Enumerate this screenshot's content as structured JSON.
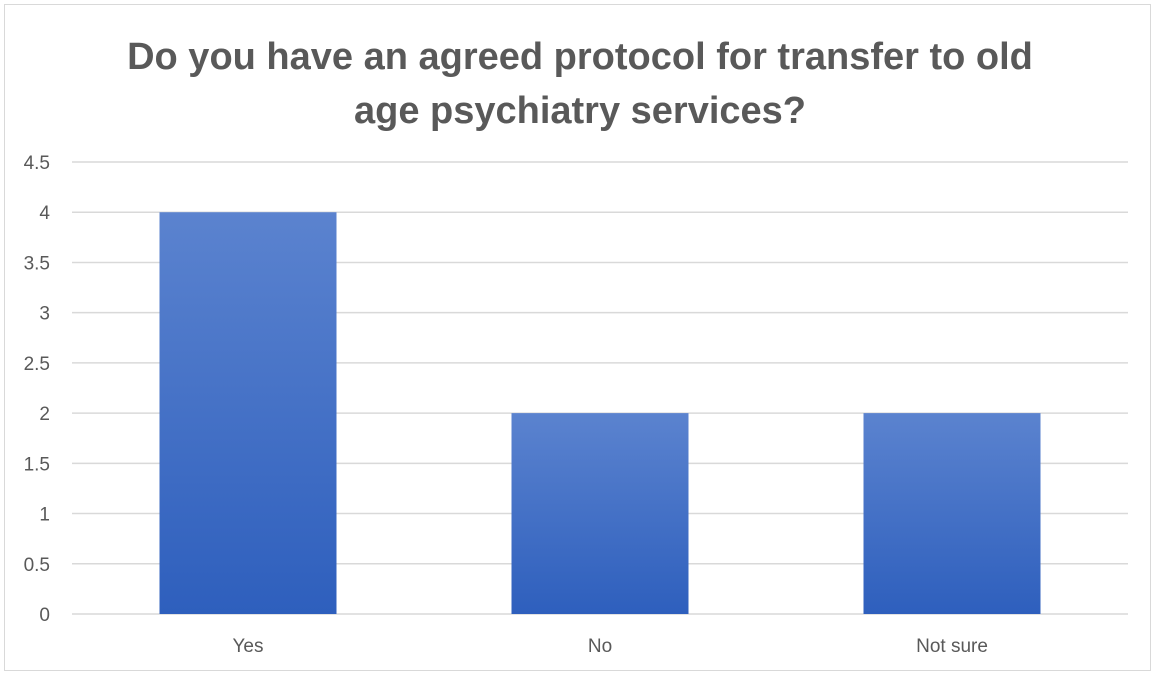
{
  "chart_data": {
    "type": "bar",
    "title": "Do you have an agreed protocol for transfer to old age psychiatry services?",
    "xlabel": "",
    "ylabel": "",
    "categories": [
      "Yes",
      "No",
      "Not sure"
    ],
    "series": [
      {
        "values": [
          4,
          2,
          2
        ]
      }
    ],
    "ylim": [
      0,
      4.5
    ],
    "y_ticks": [
      "0",
      "0.5",
      "1",
      "1.5",
      "2",
      "2.5",
      "3",
      "3.5",
      "4",
      "4.5"
    ],
    "grid": true,
    "legend": "none",
    "colors": {
      "bar_top": "#5b83cf",
      "bar_bottom": "#2e5fbd",
      "gridline": "#d9d9d9",
      "text": "#595959"
    }
  }
}
